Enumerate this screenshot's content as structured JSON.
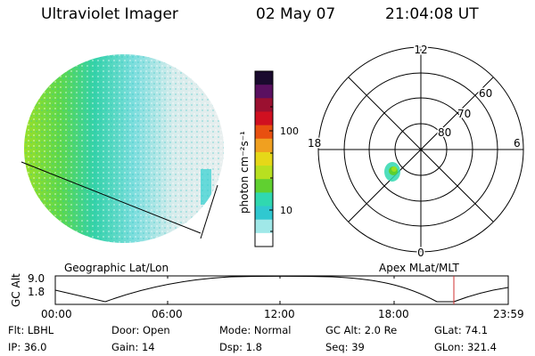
{
  "header": {
    "instrument": "Ultraviolet Imager",
    "date": "02 May 07",
    "time": "21:04:08 UT"
  },
  "colorbar": {
    "unit_label": "photon cm⁻²s⁻¹",
    "ticks": [
      "100",
      "10"
    ],
    "colors": [
      "#1a0a2e",
      "#5a1060",
      "#9b1030",
      "#d01020",
      "#e85010",
      "#f0a020",
      "#e6d818",
      "#b8e020",
      "#60d030",
      "#30d8b0",
      "#30c8d0",
      "#a0e8e8",
      "#ffffff"
    ]
  },
  "polar_plot": {
    "labels": {
      "top": "12",
      "bottom": "0",
      "left": "18",
      "right": "6",
      "ring_60": "60",
      "ring_70": "70",
      "ring_80": "80"
    }
  },
  "timeline": {
    "left_title": "Geographic Lat/Lon",
    "right_title": "Apex MLat/MLT",
    "y_axis_label": "GC Alt",
    "y_ticks": [
      "9.0",
      "1.8"
    ],
    "x_ticks": [
      "00:00",
      "06:00",
      "12:00",
      "18:00",
      "23:59"
    ],
    "current_marker_color": "#d03030"
  },
  "info": {
    "filter": "Flt: LBHL",
    "ip": "IP: 36.0",
    "door": "Door: Open",
    "gain": "Gain: 14",
    "mode": "Mode: Normal",
    "dsp": "Dsp:    1.8",
    "gc_alt": "GC Alt: 2.0 Re",
    "seq": "Seq: 39",
    "glat": "GLat:  74.1",
    "glon": "GLon: 321.4"
  }
}
